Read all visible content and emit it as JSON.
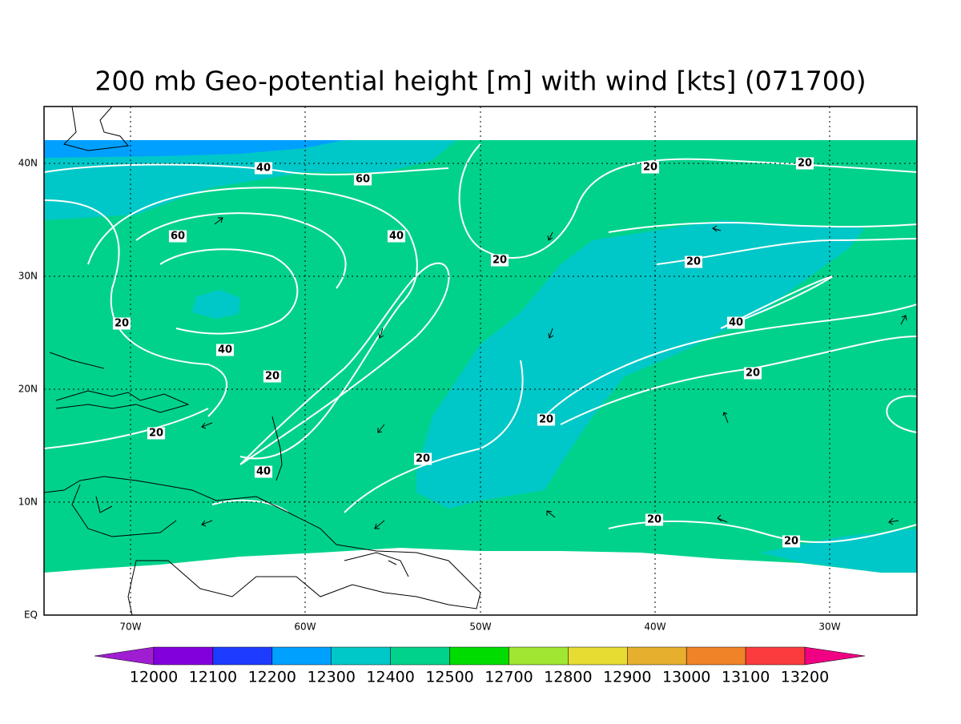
{
  "title": "200 mb Geo-potential height [m] with wind [kts] (071700)",
  "lon_labels": [
    "70W",
    "60W",
    "50W",
    "40W",
    "30W"
  ],
  "lat_labels": [
    "40N",
    "30N",
    "20N",
    "10N",
    "EQ"
  ],
  "contour_labels": [
    "40",
    "60",
    "20",
    "20",
    "60",
    "40",
    "20",
    "20",
    "20",
    "40",
    "40",
    "20",
    "20",
    "20",
    "20",
    "20",
    "40",
    "20",
    "20"
  ],
  "colorbar": {
    "labels": [
      "12000",
      "12100",
      "12200",
      "12300",
      "12400",
      "12500",
      "12700",
      "12800",
      "12900",
      "13000",
      "13100",
      "13200"
    ],
    "colors": [
      "#a01ed2",
      "#8200dc",
      "#1e3cff",
      "#00a0ff",
      "#00c8c8",
      "#00d28c",
      "#00dc00",
      "#a0e632",
      "#e6dc32",
      "#e6af2d",
      "#f08228",
      "#fa3c3c",
      "#f00082"
    ]
  }
}
